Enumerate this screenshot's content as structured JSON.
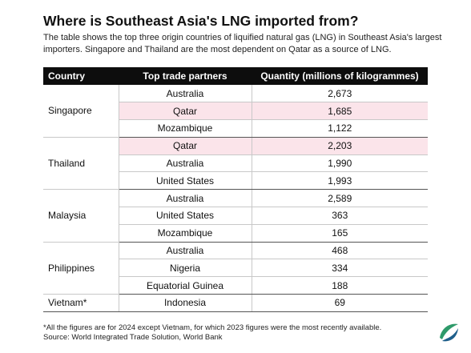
{
  "title": "Where is Southeast Asia's LNG imported from?",
  "subtitle": "The table shows the top three origin countries of liquified natural gas (LNG) in Southeast Asia's largest importers. Singapore and Thailand are the most dependent on Qatar as a source of LNG.",
  "table": {
    "headers": [
      "Country",
      "Top trade partners",
      "Quantity (millions of kilogrammes)"
    ],
    "groups": [
      {
        "country": "Singapore",
        "rows": [
          {
            "partner": "Australia",
            "quantity": "2,673",
            "highlight": false
          },
          {
            "partner": "Qatar",
            "quantity": "1,685",
            "highlight": true
          },
          {
            "partner": "Mozambique",
            "quantity": "1,122",
            "highlight": false
          }
        ]
      },
      {
        "country": "Thailand",
        "rows": [
          {
            "partner": "Qatar",
            "quantity": "2,203",
            "highlight": true
          },
          {
            "partner": "Australia",
            "quantity": "1,990",
            "highlight": false
          },
          {
            "partner": "United States",
            "quantity": "1,993",
            "highlight": false
          }
        ]
      },
      {
        "country": "Malaysia",
        "rows": [
          {
            "partner": "Australia",
            "quantity": "2,589",
            "highlight": false
          },
          {
            "partner": "United States",
            "quantity": "363",
            "highlight": false
          },
          {
            "partner": "Mozambique",
            "quantity": "165",
            "highlight": false
          }
        ]
      },
      {
        "country": "Philippines",
        "rows": [
          {
            "partner": "Australia",
            "quantity": "468",
            "highlight": false
          },
          {
            "partner": "Nigeria",
            "quantity": "334",
            "highlight": false
          },
          {
            "partner": "Equatorial Guinea",
            "quantity": "188",
            "highlight": false
          }
        ]
      },
      {
        "country": "Vietnam*",
        "rows": [
          {
            "partner": "Indonesia",
            "quantity": "69",
            "highlight": false
          }
        ]
      }
    ]
  },
  "footnote": {
    "line1": "*All the figures are for 2024 except Vietnam, for which 2023 figures were the most recently available.",
    "line2": "Source: World Integrated Trade Solution, World Bank"
  },
  "colors": {
    "header_bg": "#0d0d0d",
    "highlight": "#fbe4ea",
    "logo_green": "#2e9a6a",
    "logo_blue": "#1f5f8b"
  },
  "logo_icon": "leaf-swirl-logo-icon"
}
